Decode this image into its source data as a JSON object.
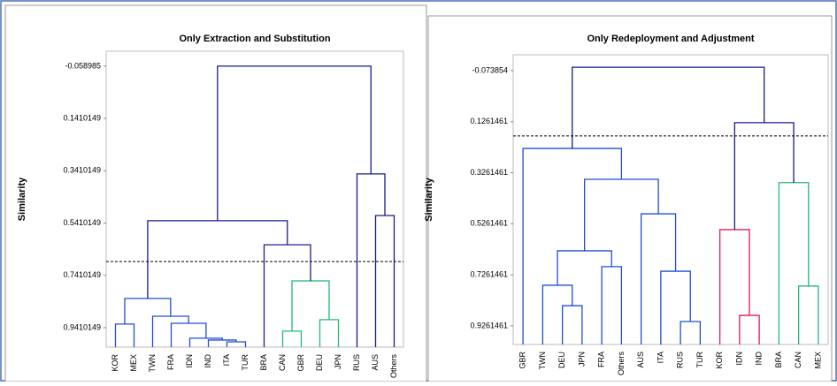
{
  "chart_data": [
    {
      "type": "dendrogram",
      "title": "Only Extraction and Substitution",
      "ylabel": "Similarity",
      "leaves": [
        "KOR",
        "MEX",
        "TWN",
        "FRA",
        "IDN",
        "IND",
        "ITA",
        "TUR",
        "BRA",
        "CAN",
        "GBR",
        "DEU",
        "JPN",
        "RUS",
        "AUS",
        "Others"
      ],
      "merges": [
        {
          "children": [
            6,
            7
          ],
          "height": 0.995,
          "color": "#1f4fd0"
        },
        {
          "children": [
            5,
            16
          ],
          "height": 0.988,
          "color": "#1f4fd0"
        },
        {
          "children": [
            4,
            17
          ],
          "height": 0.981,
          "color": "#1f4fd0"
        },
        {
          "children": [
            3,
            18
          ],
          "height": 0.924,
          "color": "#1f4fd0"
        },
        {
          "children": [
            2,
            19
          ],
          "height": 0.897,
          "color": "#1f4fd0"
        },
        {
          "children": [
            0,
            1
          ],
          "height": 0.927,
          "color": "#1f4fd0"
        },
        {
          "children": [
            21,
            20
          ],
          "height": 0.829,
          "color": "#1f4fd0"
        },
        {
          "children": [
            9,
            10
          ],
          "height": 0.954,
          "color": "#22b877"
        },
        {
          "children": [
            11,
            12
          ],
          "height": 0.91,
          "color": "#22b877"
        },
        {
          "children": [
            23,
            24
          ],
          "height": 0.762,
          "color": "#22b877"
        },
        {
          "children": [
            8,
            25
          ],
          "height": 0.624,
          "color": "#2a1a8c"
        },
        {
          "children": [
            22,
            26
          ],
          "height": 0.532,
          "color": "#1a1a8c"
        },
        {
          "children": [
            14,
            15
          ],
          "height": 0.512,
          "color": "#1a1a8c"
        },
        {
          "children": [
            13,
            28
          ],
          "height": 0.353,
          "color": "#1a1a8c"
        },
        {
          "children": [
            27,
            29
          ],
          "height": -0.058985,
          "color": "#1a1a8c"
        }
      ],
      "cut": 0.688,
      "ylim": [
        -0.116,
        1.0152
      ],
      "yticks": [
        -0.058985,
        0.1410149,
        0.3410149,
        0.5410149,
        0.7410149,
        0.9410149
      ]
    },
    {
      "type": "dendrogram",
      "title": "Only Redeployment and Adjustment",
      "ylabel": "Similarity",
      "leaves": [
        "GBR",
        "TWN",
        "DEU",
        "JPN",
        "FRA",
        "Others",
        "AUS",
        "ITA",
        "RUS",
        "TUR",
        "KOR",
        "IDN",
        "IND",
        "BRA",
        "CAN",
        "MEX"
      ],
      "merges": [
        {
          "children": [
            2,
            3
          ],
          "height": 0.847,
          "color": "#1f4fd0"
        },
        {
          "children": [
            1,
            16
          ],
          "height": 0.767,
          "color": "#1f4fd0"
        },
        {
          "children": [
            4,
            5
          ],
          "height": 0.694,
          "color": "#1f4fd0"
        },
        {
          "children": [
            17,
            18
          ],
          "height": 0.632,
          "color": "#1f4fd0"
        },
        {
          "children": [
            8,
            9
          ],
          "height": 0.909,
          "color": "#1f4fd0"
        },
        {
          "children": [
            7,
            20
          ],
          "height": 0.712,
          "color": "#1f4fd0"
        },
        {
          "children": [
            6,
            21
          ],
          "height": 0.487,
          "color": "#1f4fd0"
        },
        {
          "children": [
            19,
            22
          ],
          "height": 0.352,
          "color": "#1f4fd0"
        },
        {
          "children": [
            0,
            23
          ],
          "height": 0.231,
          "color": "#1f4fd0"
        },
        {
          "children": [
            11,
            12
          ],
          "height": 0.885,
          "color": "#e0195a"
        },
        {
          "children": [
            10,
            25
          ],
          "height": 0.549,
          "color": "#e0195a"
        },
        {
          "children": [
            14,
            15
          ],
          "height": 0.77,
          "color": "#22b877"
        },
        {
          "children": [
            13,
            27
          ],
          "height": 0.365,
          "color": "#22b877"
        },
        {
          "children": [
            26,
            28
          ],
          "height": 0.13,
          "color": "#1a1a8c"
        },
        {
          "children": [
            24,
            29
          ],
          "height": -0.087,
          "color": "#1a1a8c"
        }
      ],
      "cut": 0.182,
      "ylim": [
        -0.136,
        0.999
      ],
      "yticks": [
        -0.073854,
        0.1261461,
        0.3261461,
        0.5261461,
        0.7261461,
        0.9261461
      ]
    }
  ]
}
